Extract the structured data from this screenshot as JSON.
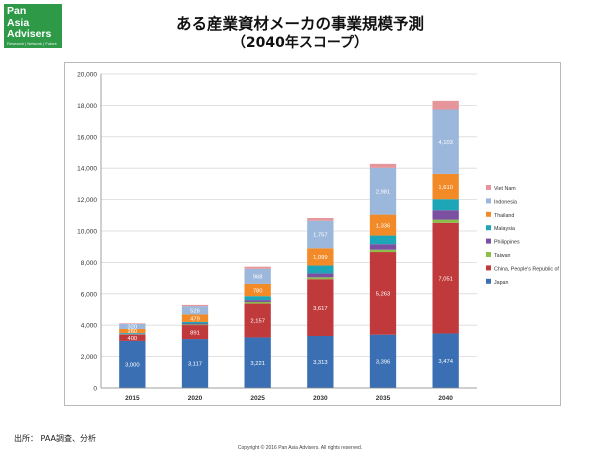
{
  "logo": {
    "line1": "Pan",
    "line2": "Asia",
    "line3": "Advisers",
    "tagline": "Research | Network | Future"
  },
  "header": {
    "title": "ある産業資材メーカの事業規模予測",
    "subtitle": "（2040年スコープ）"
  },
  "footer": {
    "source": "出所： PAA調査、分析",
    "copyright": "Copyright © 2016 Pan Asia Advisers. All rights reserved."
  },
  "colors": {
    "logo_green": "#2e9a47"
  },
  "chart_data": {
    "type": "bar",
    "stacked": true,
    "categories": [
      "2015",
      "2020",
      "2025",
      "2030",
      "2035",
      "2040"
    ],
    "ylim": [
      0,
      20000
    ],
    "yticks": [
      0,
      2000,
      4000,
      6000,
      8000,
      10000,
      12000,
      14000,
      16000,
      18000,
      20000
    ],
    "ytick_labels": [
      "0",
      "2,000",
      "4,000",
      "6,000",
      "8,000",
      "10,000",
      "12,000",
      "14,000",
      "16,000",
      "18,000",
      "20,000"
    ],
    "grid": true,
    "legend_position": "right",
    "series": [
      {
        "name": "Japan",
        "color": "#3a6fb3",
        "values": [
          3000,
          3117,
          3221,
          3313,
          3396,
          3474
        ],
        "labels": [
          "3,000",
          "3,117",
          "3,221",
          "3,313",
          "3,396",
          "3,474"
        ]
      },
      {
        "name": "China, People's Republic of",
        "color": "#c0393b",
        "values": [
          400,
          891,
          2157,
          3617,
          5263,
          7051
        ],
        "labels": [
          "400",
          "891",
          "2,157",
          "3,617",
          "5,263",
          "7,051"
        ]
      },
      {
        "name": "Taiwan",
        "color": "#8cbf4a",
        "values": [
          20,
          40,
          100,
          120,
          150,
          200
        ],
        "labels": [
          "",
          "",
          "",
          "",
          "",
          ""
        ]
      },
      {
        "name": "Philippines",
        "color": "#7b4fa1",
        "values": [
          30,
          60,
          120,
          250,
          350,
          600
        ],
        "labels": [
          "",
          "",
          "",
          "",
          "",
          ""
        ]
      },
      {
        "name": "Malaysia",
        "color": "#1da6b8",
        "values": [
          50,
          100,
          250,
          500,
          550,
          700
        ],
        "labels": [
          "",
          "",
          "",
          "",
          "",
          ""
        ]
      },
      {
        "name": "Thailand",
        "color": "#f28a27",
        "values": [
          260,
          479,
          780,
          1099,
          1336,
          1610
        ],
        "labels": [
          "260",
          "479",
          "780",
          "1,099",
          "1,336",
          "1,610"
        ]
      },
      {
        "name": "Indonesia",
        "color": "#9bb7db",
        "values": [
          320,
          526,
          968,
          1757,
          2981,
          4103
        ],
        "labels": [
          "320",
          "526",
          "968",
          "1,757",
          "2,981",
          "4,103"
        ]
      },
      {
        "name": "Viet Nam",
        "color": "#e6969a",
        "values": [
          40,
          80,
          130,
          170,
          250,
          550
        ],
        "labels": [
          "",
          "",
          "",
          "",
          "",
          ""
        ]
      }
    ]
  }
}
